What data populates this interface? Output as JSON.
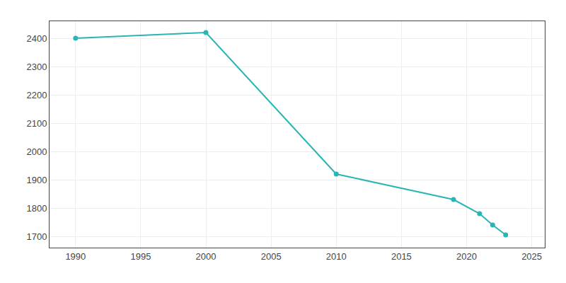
{
  "chart_data": {
    "type": "line",
    "x": [
      1990,
      2000,
      2010,
      2019,
      2021,
      2022,
      2023
    ],
    "values": [
      2400,
      2420,
      1920,
      1830,
      1780,
      1740,
      1705
    ],
    "color": "#2ab5b5",
    "marker": "circle",
    "xlim": [
      1988,
      2026
    ],
    "ylim": [
      1660,
      2460
    ],
    "xticks": [
      1990,
      1995,
      2000,
      2005,
      2010,
      2015,
      2020,
      2025
    ],
    "yticks": [
      1700,
      1800,
      1900,
      2000,
      2100,
      2200,
      2300,
      2400
    ],
    "grid": true
  }
}
